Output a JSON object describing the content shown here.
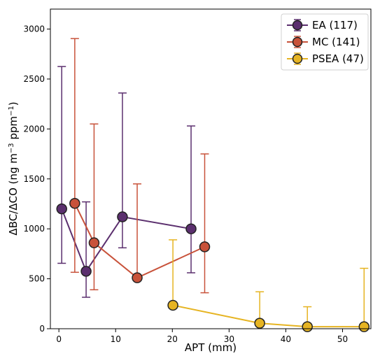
{
  "chart_data": {
    "type": "scatter",
    "xlabel": "APT (mm)",
    "ylabel_main": "ΔBC/ΔCO (ng m",
    "ylabel_sup1": "−3",
    "ylabel_mid": " ppm",
    "ylabel_sup2": "−1",
    "ylabel_end": ")",
    "xlim": [
      -1.5,
      55
    ],
    "ylim": [
      0,
      3200
    ],
    "xticks": [
      0,
      10,
      20,
      30,
      40,
      50
    ],
    "yticks": [
      0,
      500,
      1000,
      1500,
      2000,
      2500,
      3000
    ],
    "legend_position": "top-right",
    "series": [
      {
        "name": "EA (117)",
        "color": "#5b2f6e",
        "points": [
          {
            "x": 0.5,
            "y": 1200,
            "lo": 655,
            "hi": 2625
          },
          {
            "x": 4.8,
            "y": 575,
            "lo": 315,
            "hi": 1270
          },
          {
            "x": 11.2,
            "y": 1120,
            "lo": 810,
            "hi": 2360
          },
          {
            "x": 23.3,
            "y": 1000,
            "lo": 560,
            "hi": 2030
          }
        ]
      },
      {
        "name": "MC (141)",
        "color": "#c8523a",
        "points": [
          {
            "x": 2.8,
            "y": 1255,
            "lo": 565,
            "hi": 2905
          },
          {
            "x": 6.2,
            "y": 860,
            "lo": 390,
            "hi": 2050
          },
          {
            "x": 13.8,
            "y": 510,
            "lo": 510,
            "hi": 1450
          },
          {
            "x": 25.7,
            "y": 820,
            "lo": 360,
            "hi": 1750
          }
        ]
      },
      {
        "name": "PSEA (47)",
        "color": "#e6b422",
        "points": [
          {
            "x": 20.1,
            "y": 235,
            "lo": 235,
            "hi": 890
          },
          {
            "x": 35.4,
            "y": 55,
            "lo": 55,
            "hi": 370
          },
          {
            "x": 43.8,
            "y": 20,
            "lo": 20,
            "hi": 220
          },
          {
            "x": 53.8,
            "y": 20,
            "lo": 20,
            "hi": 605
          }
        ]
      }
    ]
  }
}
